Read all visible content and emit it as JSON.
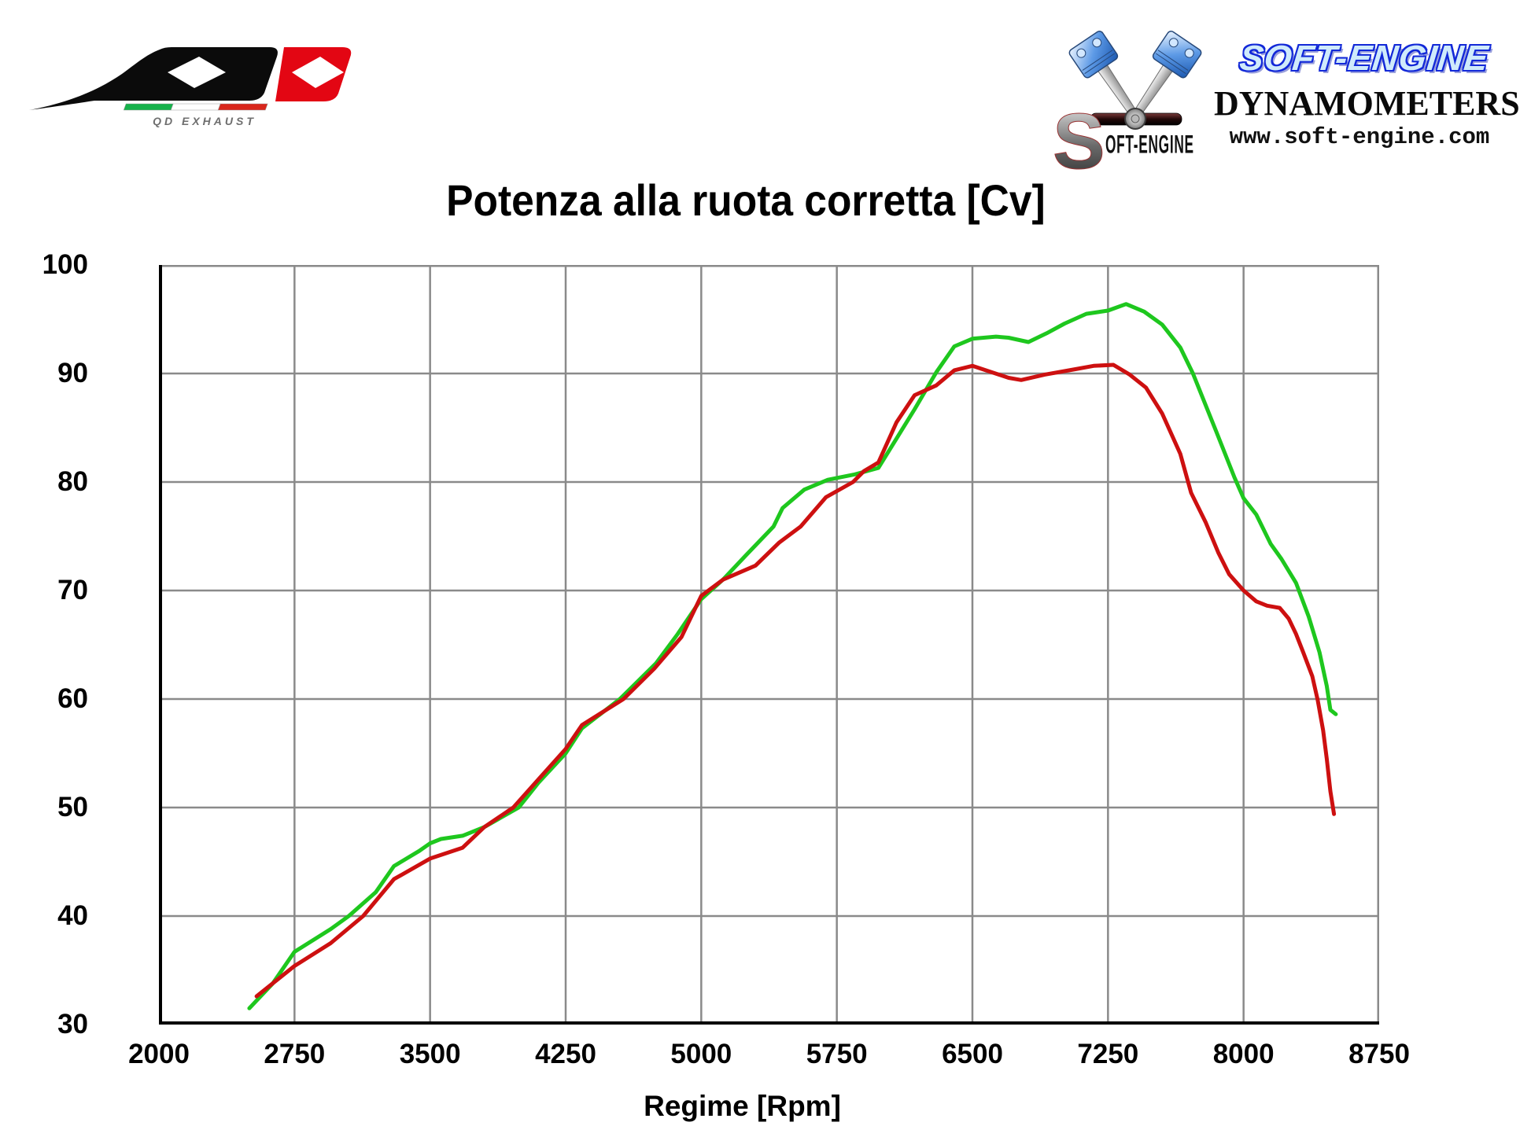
{
  "header": {
    "qd_logo": {
      "caption": "QD EXHAUST",
      "black": "#0b0b0b",
      "red": "#e30613",
      "flag_colors": [
        "#16b24b",
        "#ffffff",
        "#d9261c"
      ]
    },
    "soft_engine": {
      "s_mark": "S",
      "mark_rest": "OFT-ENGINE",
      "brand": "SOFT-ENGINE",
      "subtitle": "DYNAMOMETERS",
      "website": "www.soft-engine.com",
      "brand_color": "#1228d8"
    }
  },
  "chart_data": {
    "type": "line",
    "title": "Potenza alla ruota corretta [Cv]",
    "xlabel": "Regime [Rpm]",
    "ylabel": "",
    "xlim": [
      2000,
      8750
    ],
    "ylim": [
      30,
      100
    ],
    "x_ticks": [
      2000,
      2750,
      3500,
      4250,
      5000,
      5750,
      6500,
      7250,
      8000,
      8750
    ],
    "y_ticks": [
      30,
      40,
      50,
      60,
      70,
      80,
      90,
      100
    ],
    "grid": true,
    "grid_color": "#8a8a8a",
    "axis_color": "#000000",
    "legend": "none",
    "series": [
      {
        "name": "green-line",
        "color": "#1ec71e",
        "points": [
          [
            2500,
            31.5
          ],
          [
            2630,
            33.8
          ],
          [
            2750,
            36.7
          ],
          [
            2950,
            38.8
          ],
          [
            3050,
            40.0
          ],
          [
            3200,
            42.2
          ],
          [
            3300,
            44.6
          ],
          [
            3440,
            46.0
          ],
          [
            3500,
            46.7
          ],
          [
            3560,
            47.1
          ],
          [
            3680,
            47.4
          ],
          [
            3800,
            48.2
          ],
          [
            3990,
            50.0
          ],
          [
            4100,
            52.3
          ],
          [
            4250,
            55.0
          ],
          [
            4340,
            57.3
          ],
          [
            4550,
            60.0
          ],
          [
            4750,
            63.3
          ],
          [
            4870,
            66.0
          ],
          [
            5000,
            69.2
          ],
          [
            5120,
            71.0
          ],
          [
            5250,
            73.3
          ],
          [
            5400,
            75.9
          ],
          [
            5450,
            77.6
          ],
          [
            5570,
            79.3
          ],
          [
            5700,
            80.2
          ],
          [
            5850,
            80.7
          ],
          [
            5980,
            81.3
          ],
          [
            6080,
            84.0
          ],
          [
            6180,
            86.7
          ],
          [
            6300,
            90.1
          ],
          [
            6400,
            92.5
          ],
          [
            6500,
            93.2
          ],
          [
            6630,
            93.4
          ],
          [
            6700,
            93.3
          ],
          [
            6810,
            92.9
          ],
          [
            6910,
            93.7
          ],
          [
            7010,
            94.6
          ],
          [
            7130,
            95.5
          ],
          [
            7250,
            95.8
          ],
          [
            7350,
            96.4
          ],
          [
            7450,
            95.7
          ],
          [
            7550,
            94.5
          ],
          [
            7650,
            92.4
          ],
          [
            7720,
            90.0
          ],
          [
            7850,
            84.6
          ],
          [
            7950,
            80.4
          ],
          [
            8000,
            78.5
          ],
          [
            8070,
            77.0
          ],
          [
            8150,
            74.3
          ],
          [
            8210,
            72.9
          ],
          [
            8290,
            70.7
          ],
          [
            8360,
            67.6
          ],
          [
            8420,
            64.3
          ],
          [
            8460,
            61.2
          ],
          [
            8480,
            59.0
          ],
          [
            8510,
            58.6
          ]
        ]
      },
      {
        "name": "red-line",
        "color": "#cd1010",
        "points": [
          [
            2540,
            32.6
          ],
          [
            2750,
            35.4
          ],
          [
            2950,
            37.5
          ],
          [
            3130,
            40.0
          ],
          [
            3300,
            43.4
          ],
          [
            3500,
            45.3
          ],
          [
            3680,
            46.3
          ],
          [
            3800,
            48.2
          ],
          [
            3960,
            50.0
          ],
          [
            4100,
            52.6
          ],
          [
            4250,
            55.4
          ],
          [
            4340,
            57.6
          ],
          [
            4570,
            60.0
          ],
          [
            4740,
            62.8
          ],
          [
            4890,
            65.7
          ],
          [
            5000,
            69.5
          ],
          [
            5120,
            71.0
          ],
          [
            5300,
            72.3
          ],
          [
            5430,
            74.4
          ],
          [
            5550,
            75.9
          ],
          [
            5690,
            78.6
          ],
          [
            5840,
            80.0
          ],
          [
            5900,
            81.0
          ],
          [
            5980,
            81.8
          ],
          [
            6080,
            85.5
          ],
          [
            6180,
            88.0
          ],
          [
            6300,
            88.9
          ],
          [
            6400,
            90.3
          ],
          [
            6500,
            90.7
          ],
          [
            6700,
            89.6
          ],
          [
            6770,
            89.4
          ],
          [
            6900,
            89.9
          ],
          [
            7070,
            90.4
          ],
          [
            7170,
            90.7
          ],
          [
            7280,
            90.8
          ],
          [
            7370,
            89.9
          ],
          [
            7460,
            88.7
          ],
          [
            7550,
            86.3
          ],
          [
            7650,
            82.6
          ],
          [
            7710,
            79.0
          ],
          [
            7790,
            76.3
          ],
          [
            7860,
            73.5
          ],
          [
            7920,
            71.5
          ],
          [
            8000,
            70.0
          ],
          [
            8070,
            69.0
          ],
          [
            8130,
            68.6
          ],
          [
            8200,
            68.4
          ],
          [
            8250,
            67.4
          ],
          [
            8290,
            66.0
          ],
          [
            8330,
            64.3
          ],
          [
            8380,
            62.1
          ],
          [
            8410,
            59.9
          ],
          [
            8440,
            57.1
          ],
          [
            8460,
            54.5
          ],
          [
            8480,
            51.5
          ],
          [
            8500,
            49.4
          ]
        ]
      }
    ]
  }
}
